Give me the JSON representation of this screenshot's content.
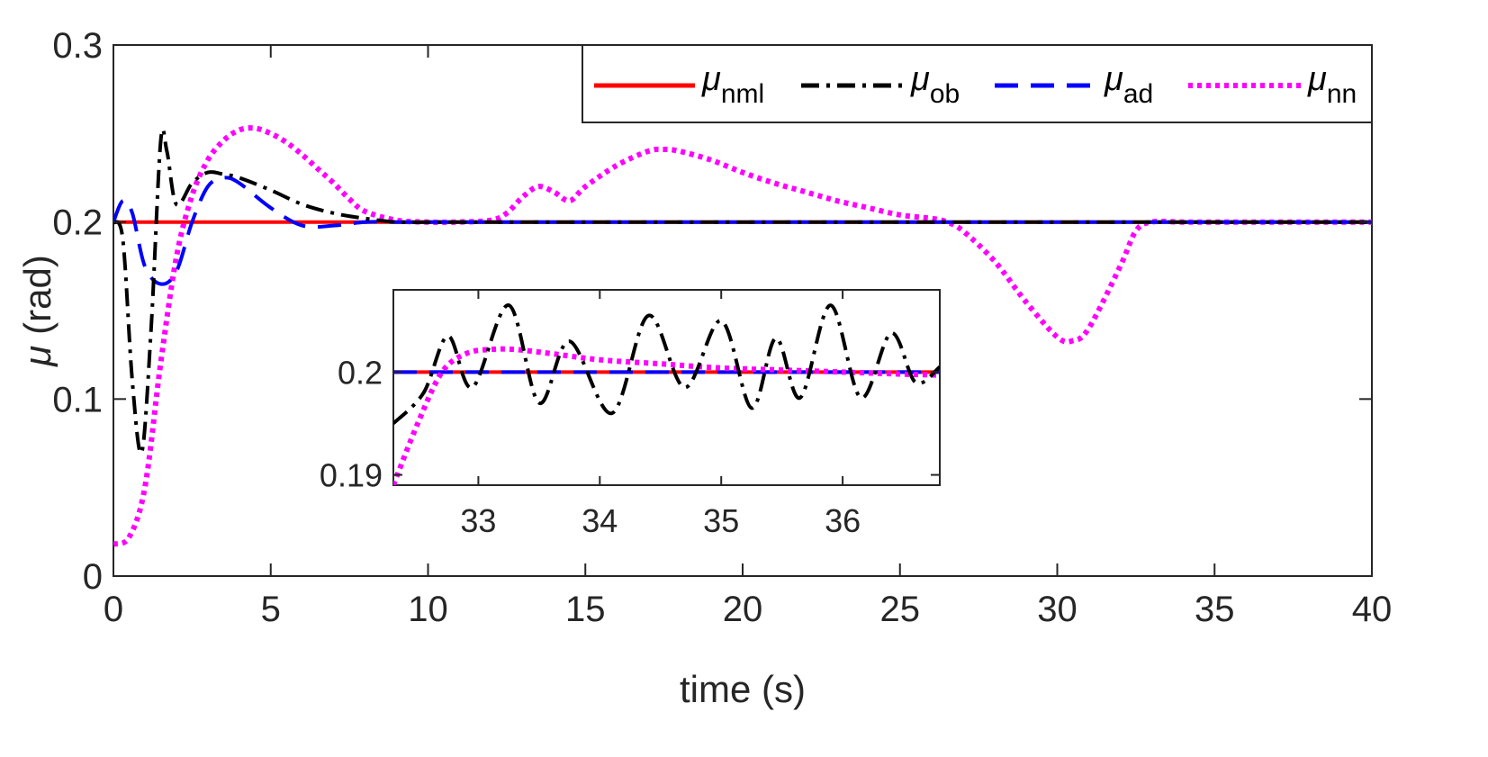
{
  "chart_data": [
    {
      "id": "main",
      "type": "line",
      "title": "",
      "xlabel": "time (s)",
      "ylabel_symbol": "μ",
      "ylabel_unit": "(rad)",
      "xlim": [
        0,
        40
      ],
      "ylim": [
        0,
        0.3
      ],
      "xticks": [
        0,
        5,
        10,
        15,
        20,
        25,
        30,
        35,
        40
      ],
      "yticks": [
        0,
        0.1,
        0.2,
        0.3
      ],
      "xtick_labels": [
        "0",
        "5",
        "10",
        "15",
        "20",
        "25",
        "30",
        "35",
        "40"
      ],
      "ytick_labels": [
        "0",
        "0.1",
        "0.2",
        "0.3"
      ],
      "grid": false,
      "legend_position": "top-right",
      "series": [
        {
          "key": "nml",
          "name_symbol": "μ",
          "name_sub": "nml",
          "color": "#ff0000",
          "style": "solid",
          "x": [
            0,
            40
          ],
          "y": [
            0.2,
            0.2
          ]
        },
        {
          "key": "ob",
          "name_symbol": "μ",
          "name_sub": "ob",
          "color": "#000000",
          "style": "dashdot",
          "x": [
            0,
            0.3,
            0.6,
            0.9,
            1.2,
            1.5,
            1.7,
            2.0,
            2.5,
            3.0,
            3.5,
            4.0,
            5.0,
            6.0,
            7.0,
            8.0,
            9.0,
            10,
            12,
            14,
            16,
            18,
            20,
            22,
            24,
            26,
            28,
            30,
            32,
            34,
            36,
            38,
            40
          ],
          "y": [
            0.2,
            0.19,
            0.11,
            0.07,
            0.14,
            0.245,
            0.24,
            0.21,
            0.222,
            0.228,
            0.227,
            0.225,
            0.218,
            0.21,
            0.205,
            0.202,
            0.2,
            0.2,
            0.2,
            0.2,
            0.2,
            0.2,
            0.2,
            0.2,
            0.2,
            0.2,
            0.2,
            0.2,
            0.2,
            0.2,
            0.2,
            0.2,
            0.2
          ]
        },
        {
          "key": "ad",
          "name_symbol": "μ",
          "name_sub": "ad",
          "color": "#0000ff",
          "style": "dashed",
          "x": [
            0,
            0.3,
            0.6,
            1.0,
            1.5,
            2.0,
            2.5,
            3.0,
            3.5,
            4.0,
            5.0,
            6.0,
            7.0,
            8.0,
            9.0,
            10,
            12,
            14,
            16,
            18,
            20,
            25,
            30,
            35,
            40
          ],
          "y": [
            0.2,
            0.212,
            0.205,
            0.175,
            0.165,
            0.172,
            0.2,
            0.22,
            0.225,
            0.222,
            0.208,
            0.198,
            0.198,
            0.2,
            0.2,
            0.2,
            0.2,
            0.2,
            0.2,
            0.2,
            0.2,
            0.2,
            0.2,
            0.2,
            0.2
          ]
        },
        {
          "key": "nn",
          "name_symbol": "μ",
          "name_sub": "nn",
          "color": "#ff00ff",
          "style": "dotted",
          "x": [
            0,
            0.5,
            1.0,
            1.5,
            2.0,
            2.5,
            3.0,
            3.5,
            4.0,
            4.5,
            5.0,
            5.5,
            6.0,
            6.5,
            7.0,
            7.5,
            8.0,
            9.0,
            10,
            11,
            12,
            12.5,
            13,
            13.5,
            14,
            14.5,
            15,
            16,
            17,
            17.5,
            18,
            19,
            20,
            21,
            22,
            23,
            24,
            25,
            26,
            26.5,
            27,
            28,
            29,
            30,
            30.5,
            31,
            32,
            32.5,
            33,
            34,
            35,
            40
          ],
          "y": [
            0.018,
            0.022,
            0.05,
            0.12,
            0.18,
            0.215,
            0.235,
            0.246,
            0.252,
            0.253,
            0.25,
            0.245,
            0.238,
            0.23,
            0.222,
            0.213,
            0.206,
            0.201,
            0.2,
            0.2,
            0.201,
            0.205,
            0.214,
            0.22,
            0.217,
            0.212,
            0.22,
            0.232,
            0.24,
            0.241,
            0.24,
            0.235,
            0.228,
            0.222,
            0.217,
            0.212,
            0.208,
            0.204,
            0.202,
            0.2,
            0.195,
            0.178,
            0.155,
            0.135,
            0.133,
            0.14,
            0.175,
            0.195,
            0.2,
            0.2,
            0.2,
            0.2
          ]
        }
      ]
    },
    {
      "id": "inset",
      "type": "line",
      "title": "",
      "xlim": [
        32.3,
        36.8
      ],
      "ylim": [
        0.189,
        0.208
      ],
      "xticks": [
        33,
        34,
        35,
        36
      ],
      "yticks": [
        0.19,
        0.2
      ],
      "xtick_labels": [
        "33",
        "34",
        "35",
        "36"
      ],
      "ytick_labels": [
        "0.19",
        "0.2"
      ],
      "grid": false,
      "series": [
        {
          "key": "nml",
          "color": "#ff0000",
          "style": "solid",
          "x": [
            32.3,
            36.8
          ],
          "y": [
            0.2,
            0.2
          ]
        },
        {
          "key": "ad",
          "color": "#0000ff",
          "style": "dashed",
          "x": [
            32.3,
            36.8
          ],
          "y": [
            0.2,
            0.2
          ]
        },
        {
          "key": "ob",
          "color": "#000000",
          "style": "dashdot",
          "x": [
            32.3,
            32.55,
            32.75,
            32.95,
            33.25,
            33.5,
            33.75,
            34.1,
            34.4,
            34.7,
            35.0,
            35.25,
            35.45,
            35.65,
            35.9,
            36.15,
            36.4,
            36.6,
            36.8
          ],
          "y": [
            0.195,
            0.198,
            0.2035,
            0.1985,
            0.2065,
            0.197,
            0.203,
            0.196,
            0.2055,
            0.1985,
            0.205,
            0.1965,
            0.2033,
            0.1975,
            0.2065,
            0.1975,
            0.2038,
            0.199,
            0.2005
          ]
        },
        {
          "key": "nn",
          "color": "#ff00ff",
          "style": "dotted",
          "x": [
            32.3,
            32.5,
            32.7,
            32.9,
            33.1,
            33.3,
            33.6,
            34.0,
            34.5,
            35.0,
            35.5,
            36.0,
            36.5,
            36.8
          ],
          "y": [
            0.189,
            0.195,
            0.2,
            0.2018,
            0.2022,
            0.2022,
            0.2018,
            0.2012,
            0.2008,
            0.2004,
            0.2002,
            0.2,
            0.1998,
            0.1997
          ]
        }
      ]
    }
  ]
}
